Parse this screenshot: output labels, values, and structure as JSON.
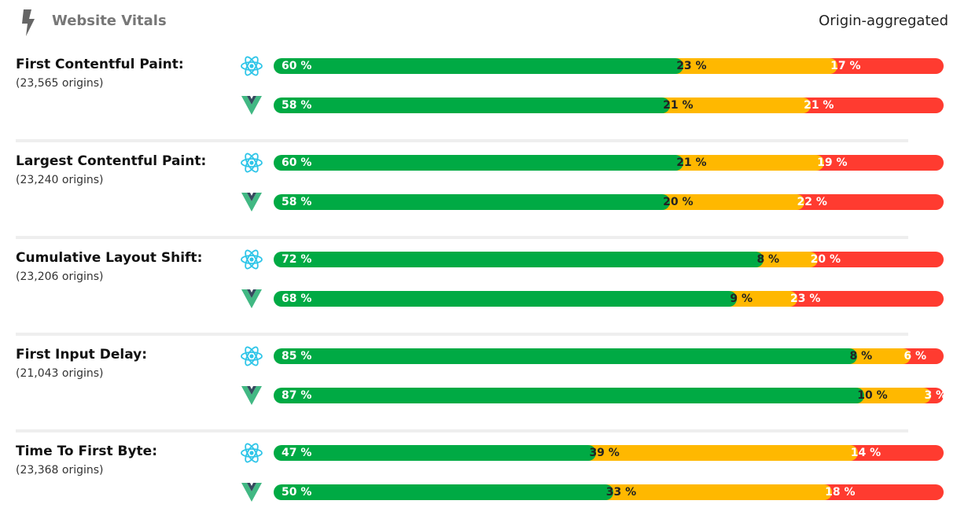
{
  "header": {
    "title": "Website Vitals",
    "aggregation": "Origin-aggregated",
    "icon": "lightning-bolt-icon"
  },
  "colors": {
    "good": "#00aa44",
    "needs_improvement": "#ffb800",
    "poor": "#ff3b30",
    "react": "#2ec5e8",
    "vue_outer": "#41b883",
    "vue_inner": "#35495e"
  },
  "frameworks": [
    {
      "id": "react",
      "icon": "react-logo-icon"
    },
    {
      "id": "vue",
      "icon": "vue-logo-icon"
    }
  ],
  "chart_data": {
    "type": "bar",
    "stacked": true,
    "orientation": "horizontal",
    "segments": [
      "good",
      "needs_improvement",
      "poor"
    ],
    "unit": "%",
    "metrics": [
      {
        "name": "First Contentful Paint:",
        "origins": "(23,565 origins)",
        "rows": [
          {
            "framework": "react",
            "values": [
              60,
              23,
              17
            ]
          },
          {
            "framework": "vue",
            "values": [
              58,
              21,
              21
            ]
          }
        ]
      },
      {
        "name": "Largest Contentful Paint:",
        "origins": "(23,240 origins)",
        "rows": [
          {
            "framework": "react",
            "values": [
              60,
              21,
              19
            ]
          },
          {
            "framework": "vue",
            "values": [
              58,
              20,
              22
            ]
          }
        ]
      },
      {
        "name": "Cumulative Layout Shift:",
        "origins": "(23,206 origins)",
        "rows": [
          {
            "framework": "react",
            "values": [
              72,
              8,
              20
            ]
          },
          {
            "framework": "vue",
            "values": [
              68,
              9,
              23
            ]
          }
        ]
      },
      {
        "name": "First Input Delay:",
        "origins": "(21,043 origins)",
        "rows": [
          {
            "framework": "react",
            "values": [
              85,
              8,
              6
            ]
          },
          {
            "framework": "vue",
            "values": [
              87,
              10,
              3
            ]
          }
        ]
      },
      {
        "name": "Time To First Byte:",
        "origins": "(23,368 origins)",
        "rows": [
          {
            "framework": "react",
            "values": [
              47,
              39,
              14
            ]
          },
          {
            "framework": "vue",
            "values": [
              50,
              33,
              18
            ]
          }
        ]
      }
    ]
  }
}
